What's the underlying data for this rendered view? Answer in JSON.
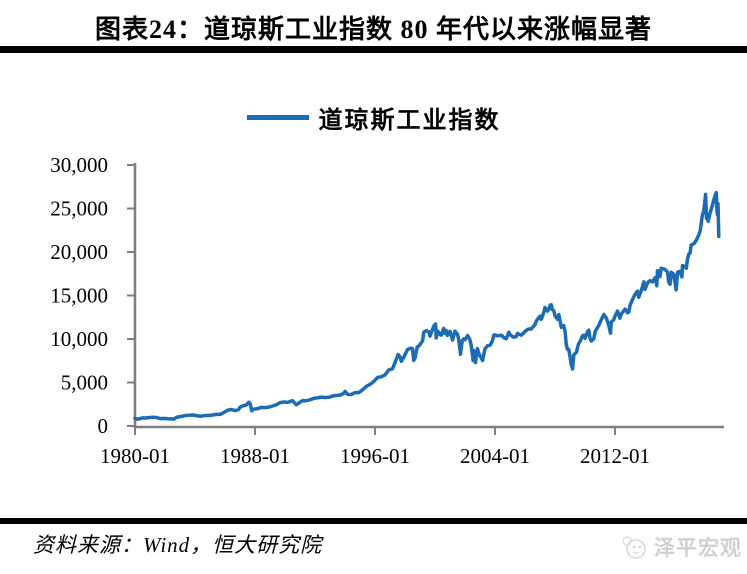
{
  "title": "图表24：道琼斯工业指数 80 年代以来涨幅显著",
  "legend": {
    "label": "道琼斯工业指数",
    "line_color": "#1B6CB4"
  },
  "footer": {
    "source": "资料来源：Wind，恒大研究院",
    "watermark": "泽平宏观"
  },
  "chart_data": {
    "type": "line",
    "title": "道琼斯工业指数",
    "xlabel": "",
    "ylabel": "",
    "xlim": [
      1980.0,
      2019.27
    ],
    "ylim": [
      0,
      30000
    ],
    "grid": false,
    "legend_position": "top-center",
    "axis_color": "#7F7F7F",
    "y_ticks": [
      0,
      5000,
      10000,
      15000,
      20000,
      25000,
      30000
    ],
    "y_tick_labels": [
      "0",
      "5,000",
      "10,000",
      "15,000",
      "20,000",
      "25,000",
      "30,000"
    ],
    "x_ticks": [
      {
        "t": 1980.0,
        "label": "1980-01"
      },
      {
        "t": 1988.0,
        "label": "1988-01"
      },
      {
        "t": 1996.0,
        "label": "1996-01"
      },
      {
        "t": 2004.0,
        "label": "2004-01"
      },
      {
        "t": 2012.0,
        "label": "2012-01"
      }
    ],
    "series": [
      {
        "name": "道琼斯工业指数",
        "color": "#1B6CB4",
        "points": [
          [
            1980.0,
            876
          ],
          [
            1980.17,
            786
          ],
          [
            1980.25,
            817
          ],
          [
            1980.42,
            868
          ],
          [
            1980.5,
            935
          ],
          [
            1980.75,
            924
          ],
          [
            1980.92,
            964
          ],
          [
            1981.17,
            1004
          ],
          [
            1981.42,
            977
          ],
          [
            1981.67,
            850
          ],
          [
            1981.92,
            875
          ],
          [
            1982.17,
            823
          ],
          [
            1982.42,
            812
          ],
          [
            1982.58,
            777
          ],
          [
            1982.75,
            992
          ],
          [
            1982.92,
            1047
          ],
          [
            1983.17,
            1130
          ],
          [
            1983.42,
            1222
          ],
          [
            1983.67,
            1233
          ],
          [
            1983.92,
            1259
          ],
          [
            1984.17,
            1165
          ],
          [
            1984.42,
            1132
          ],
          [
            1984.67,
            1207
          ],
          [
            1984.92,
            1212
          ],
          [
            1985.17,
            1267
          ],
          [
            1985.42,
            1336
          ],
          [
            1985.67,
            1329
          ],
          [
            1985.92,
            1547
          ],
          [
            1986.17,
            1819
          ],
          [
            1986.42,
            1893
          ],
          [
            1986.67,
            1768
          ],
          [
            1986.92,
            1896
          ],
          [
            1987.0,
            2158
          ],
          [
            1987.17,
            2305
          ],
          [
            1987.42,
            2419
          ],
          [
            1987.58,
            2722
          ],
          [
            1987.67,
            2596
          ],
          [
            1987.79,
            1739
          ],
          [
            1987.83,
            1834
          ],
          [
            1987.92,
            1939
          ],
          [
            1988.17,
            1988
          ],
          [
            1988.42,
            2142
          ],
          [
            1988.67,
            2113
          ],
          [
            1988.92,
            2169
          ],
          [
            1989.17,
            2294
          ],
          [
            1989.42,
            2440
          ],
          [
            1989.67,
            2693
          ],
          [
            1989.92,
            2753
          ],
          [
            1990.17,
            2707
          ],
          [
            1990.5,
            2905
          ],
          [
            1990.75,
            2442
          ],
          [
            1990.92,
            2634
          ],
          [
            1991.17,
            2914
          ],
          [
            1991.42,
            2907
          ],
          [
            1991.67,
            3017
          ],
          [
            1991.92,
            3169
          ],
          [
            1992.17,
            3236
          ],
          [
            1992.42,
            3319
          ],
          [
            1992.67,
            3272
          ],
          [
            1992.92,
            3301
          ],
          [
            1993.17,
            3435
          ],
          [
            1993.42,
            3516
          ],
          [
            1993.67,
            3555
          ],
          [
            1993.92,
            3754
          ],
          [
            1994.0,
            3978
          ],
          [
            1994.17,
            3636
          ],
          [
            1994.42,
            3625
          ],
          [
            1994.67,
            3843
          ],
          [
            1994.92,
            3834
          ],
          [
            1995.17,
            4158
          ],
          [
            1995.42,
            4556
          ],
          [
            1995.67,
            4789
          ],
          [
            1995.92,
            5117
          ],
          [
            1996.17,
            5587
          ],
          [
            1996.42,
            5655
          ],
          [
            1996.67,
            5882
          ],
          [
            1996.92,
            6448
          ],
          [
            1997.17,
            6584
          ],
          [
            1997.42,
            7673
          ],
          [
            1997.54,
            8222
          ],
          [
            1997.67,
            7945
          ],
          [
            1997.75,
            7442
          ],
          [
            1997.92,
            7908
          ],
          [
            1998.17,
            8800
          ],
          [
            1998.42,
            8952
          ],
          [
            1998.5,
            8883
          ],
          [
            1998.58,
            7539
          ],
          [
            1998.67,
            7843
          ],
          [
            1998.75,
            8592
          ],
          [
            1998.83,
            9117
          ],
          [
            1998.92,
            9181
          ],
          [
            1999.17,
            9786
          ],
          [
            1999.25,
            10789
          ],
          [
            1999.42,
            10971
          ],
          [
            1999.58,
            10829
          ],
          [
            1999.67,
            10337
          ],
          [
            1999.75,
            10730
          ],
          [
            1999.92,
            11497
          ],
          [
            2000.04,
            11723
          ],
          [
            2000.08,
            10128
          ],
          [
            2000.17,
            10922
          ],
          [
            2000.25,
            10734
          ],
          [
            2000.33,
            10522
          ],
          [
            2000.42,
            10448
          ],
          [
            2000.58,
            11215
          ],
          [
            2000.67,
            10651
          ],
          [
            2000.75,
            10971
          ],
          [
            2000.83,
            10414
          ],
          [
            2000.92,
            10788
          ],
          [
            2001.0,
            10887
          ],
          [
            2001.17,
            9879
          ],
          [
            2001.33,
            10912
          ],
          [
            2001.5,
            10523
          ],
          [
            2001.58,
            9950
          ],
          [
            2001.7,
            8236
          ],
          [
            2001.75,
            9075
          ],
          [
            2001.83,
            9852
          ],
          [
            2001.92,
            10021
          ],
          [
            2002.0,
            9920
          ],
          [
            2002.17,
            10404
          ],
          [
            2002.33,
            9925
          ],
          [
            2002.42,
            9243
          ],
          [
            2002.54,
            7532
          ],
          [
            2002.58,
            8664
          ],
          [
            2002.7,
            7286
          ],
          [
            2002.83,
            8896
          ],
          [
            2002.92,
            8342
          ],
          [
            2003.0,
            8054
          ],
          [
            2003.17,
            7524
          ],
          [
            2003.33,
            8850
          ],
          [
            2003.5,
            9234
          ],
          [
            2003.67,
            9275
          ],
          [
            2003.83,
            9782
          ],
          [
            2003.92,
            10454
          ],
          [
            2004.0,
            10488
          ],
          [
            2004.17,
            10358
          ],
          [
            2004.42,
            10435
          ],
          [
            2004.58,
            10174
          ],
          [
            2004.75,
            10027
          ],
          [
            2004.92,
            10783
          ],
          [
            2005.0,
            10490
          ],
          [
            2005.25,
            10193
          ],
          [
            2005.42,
            10275
          ],
          [
            2005.5,
            10641
          ],
          [
            2005.75,
            10440
          ],
          [
            2005.92,
            10718
          ],
          [
            2006.0,
            10865
          ],
          [
            2006.17,
            11109
          ],
          [
            2006.33,
            11168
          ],
          [
            2006.42,
            11150
          ],
          [
            2006.67,
            11679
          ],
          [
            2006.75,
            12080
          ],
          [
            2006.92,
            12463
          ],
          [
            2007.0,
            12622
          ],
          [
            2007.08,
            12269
          ],
          [
            2007.25,
            13063
          ],
          [
            2007.33,
            13628
          ],
          [
            2007.5,
            13212
          ],
          [
            2007.58,
            13358
          ],
          [
            2007.67,
            13896
          ],
          [
            2007.75,
            13930
          ],
          [
            2007.83,
            13372
          ],
          [
            2007.92,
            13265
          ],
          [
            2008.0,
            12650
          ],
          [
            2008.17,
            12263
          ],
          [
            2008.25,
            12820
          ],
          [
            2008.42,
            11350
          ],
          [
            2008.58,
            11544
          ],
          [
            2008.67,
            10851
          ],
          [
            2008.75,
            9325
          ],
          [
            2008.83,
            8829
          ],
          [
            2008.92,
            8776
          ],
          [
            2009.0,
            8001
          ],
          [
            2009.08,
            7063
          ],
          [
            2009.17,
            6547
          ],
          [
            2009.25,
            8168
          ],
          [
            2009.42,
            8447
          ],
          [
            2009.58,
            9496
          ],
          [
            2009.67,
            9712
          ],
          [
            2009.83,
            10345
          ],
          [
            2009.92,
            10428
          ],
          [
            2010.0,
            10067
          ],
          [
            2010.17,
            10857
          ],
          [
            2010.25,
            11009
          ],
          [
            2010.33,
            10137
          ],
          [
            2010.42,
            9774
          ],
          [
            2010.58,
            10015
          ],
          [
            2010.67,
            10788
          ],
          [
            2010.75,
            11118
          ],
          [
            2010.92,
            11578
          ],
          [
            2011.0,
            11892
          ],
          [
            2011.25,
            12811
          ],
          [
            2011.42,
            12414
          ],
          [
            2011.58,
            11614
          ],
          [
            2011.7,
            10655
          ],
          [
            2011.75,
            11955
          ],
          [
            2011.92,
            12218
          ],
          [
            2012.0,
            12633
          ],
          [
            2012.17,
            13212
          ],
          [
            2012.33,
            12393
          ],
          [
            2012.42,
            12880
          ],
          [
            2012.67,
            13437
          ],
          [
            2012.83,
            13026
          ],
          [
            2012.92,
            13104
          ],
          [
            2013.0,
            13861
          ],
          [
            2013.17,
            14579
          ],
          [
            2013.25,
            14840
          ],
          [
            2013.33,
            15116
          ],
          [
            2013.5,
            15500
          ],
          [
            2013.58,
            14810
          ],
          [
            2013.75,
            15546
          ],
          [
            2013.92,
            16577
          ],
          [
            2014.0,
            15699
          ],
          [
            2014.17,
            16458
          ],
          [
            2014.33,
            16717
          ],
          [
            2014.5,
            16563
          ],
          [
            2014.67,
            17043
          ],
          [
            2014.79,
            16117
          ],
          [
            2014.83,
            17828
          ],
          [
            2014.92,
            17823
          ],
          [
            2015.0,
            17165
          ],
          [
            2015.08,
            18133
          ],
          [
            2015.33,
            18011
          ],
          [
            2015.5,
            17690
          ],
          [
            2015.58,
            16528
          ],
          [
            2015.67,
            16285
          ],
          [
            2015.75,
            17664
          ],
          [
            2015.92,
            17425
          ],
          [
            2016.0,
            16466
          ],
          [
            2016.08,
            15660
          ],
          [
            2016.17,
            17685
          ],
          [
            2016.33,
            17787
          ],
          [
            2016.46,
            17140
          ],
          [
            2016.5,
            18432
          ],
          [
            2016.67,
            18308
          ],
          [
            2016.75,
            18142
          ],
          [
            2016.83,
            19124
          ],
          [
            2016.92,
            19763
          ],
          [
            2017.0,
            19864
          ],
          [
            2017.08,
            20812
          ],
          [
            2017.25,
            20941
          ],
          [
            2017.42,
            21350
          ],
          [
            2017.58,
            21948
          ],
          [
            2017.67,
            22405
          ],
          [
            2017.75,
            23377
          ],
          [
            2017.83,
            24272
          ],
          [
            2017.92,
            24719
          ],
          [
            2018.04,
            26617
          ],
          [
            2018.1,
            23860
          ],
          [
            2018.17,
            24103
          ],
          [
            2018.21,
            23533
          ],
          [
            2018.33,
            24416
          ],
          [
            2018.5,
            25415
          ],
          [
            2018.58,
            25965
          ],
          [
            2018.67,
            26458
          ],
          [
            2018.75,
            26828
          ],
          [
            2018.79,
            25116
          ],
          [
            2018.83,
            24286
          ],
          [
            2018.87,
            25538
          ],
          [
            2018.92,
            21792
          ]
        ]
      }
    ]
  }
}
